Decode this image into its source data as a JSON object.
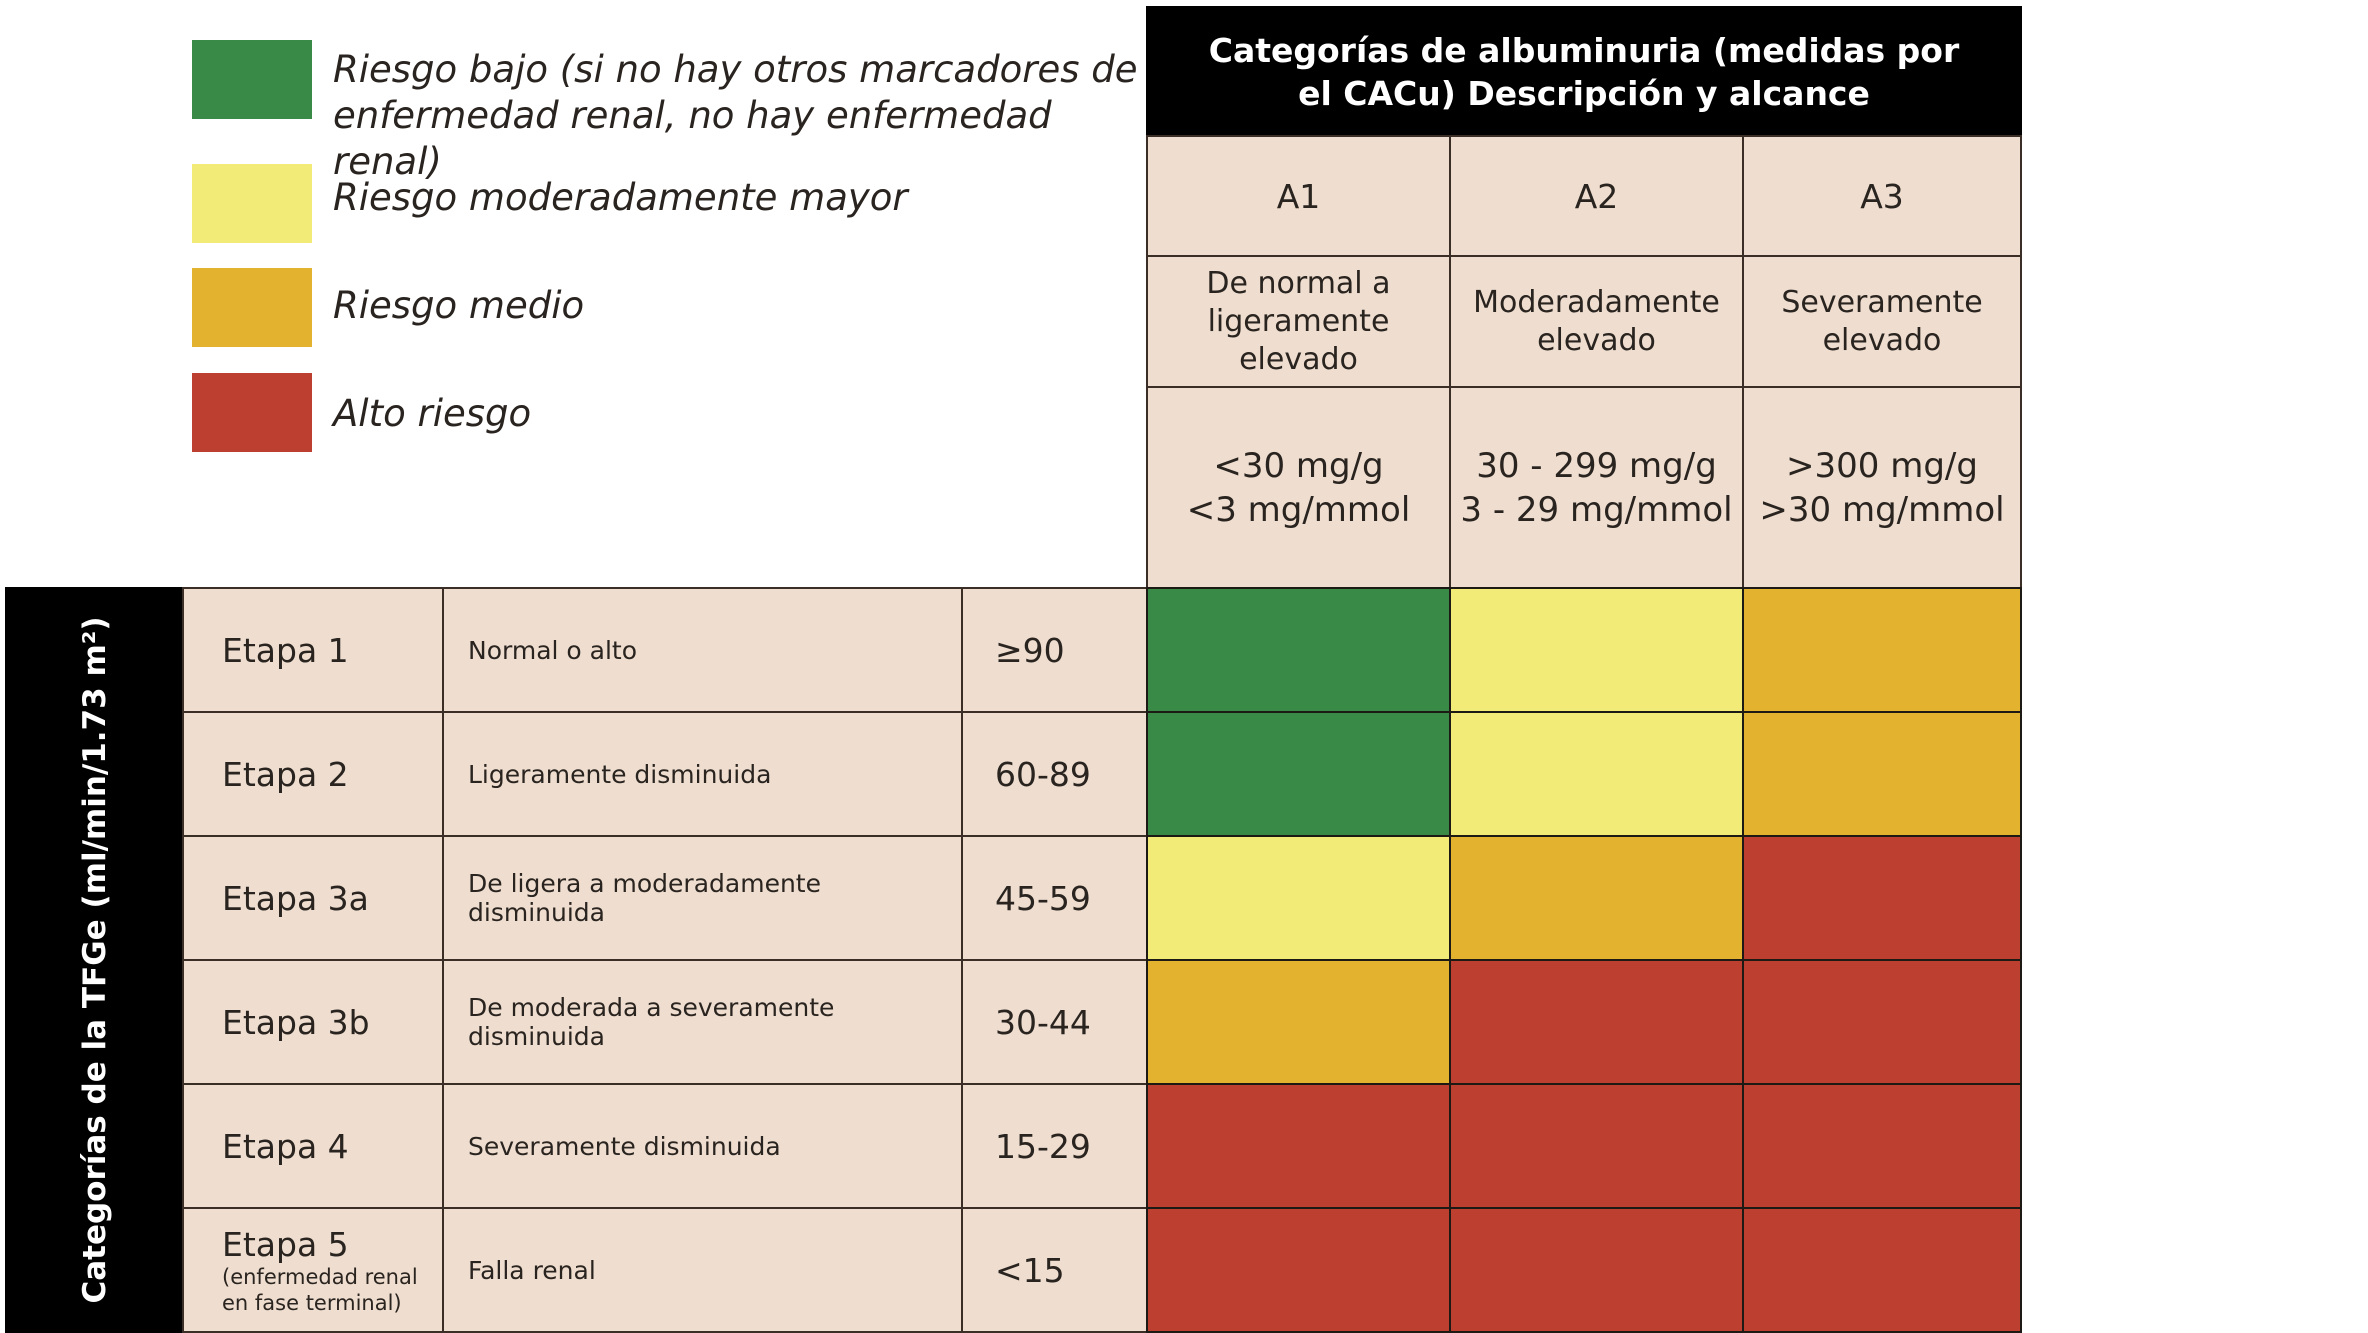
{
  "legend": [
    {
      "label_line1": "Riesgo bajo (si no hay otros marcadores de",
      "label_line2": "enfermedad renal, no hay enfermedad renal)",
      "color": "#3a8a47",
      "level": "low"
    },
    {
      "label_line1": "Riesgo moderadamente mayor",
      "label_line2": "",
      "color": "#f3eb78",
      "level": "moderate"
    },
    {
      "label_line1": "Riesgo medio",
      "label_line2": "",
      "color": "#e3b22e",
      "level": "medium"
    },
    {
      "label_line1": "Alto riesgo",
      "label_line2": "",
      "color": "#bd3f30",
      "level": "high"
    }
  ],
  "albuminuria": {
    "title_line1": "Categorías de albuminuria (medidas por",
    "title_line2": "el CACu) Descripción y alcance",
    "columns": [
      {
        "code": "A1",
        "desc_line1": "De normal a",
        "desc_line2": "ligeramente elevado",
        "range_line1": "<30 mg/g",
        "range_line2": "<3 mg/mmol"
      },
      {
        "code": "A2",
        "desc_line1": "Moderadamente",
        "desc_line2": "elevado",
        "range_line1": "30 - 299 mg/g",
        "range_line2": "3 - 29 mg/mmol"
      },
      {
        "code": "A3",
        "desc_line1": "Severamente",
        "desc_line2": "elevado",
        "range_line1": ">300 mg/g",
        "range_line2": ">30 mg/mmol"
      }
    ]
  },
  "gfr": {
    "axis_label": "Categorías de la TFGe (ml/min/1.73 m²)",
    "rows": [
      {
        "stage": "Etapa 1",
        "stage_sub1": "",
        "stage_sub2": "",
        "desc": "Normal o alto",
        "value": "≥90",
        "risk": [
          "#3a8a47",
          "#f3eb78",
          "#e3b22e"
        ]
      },
      {
        "stage": "Etapa 2",
        "stage_sub1": "",
        "stage_sub2": "",
        "desc": "Ligeramente disminuida",
        "value": "60-89",
        "risk": [
          "#3a8a47",
          "#f3eb78",
          "#e3b22e"
        ]
      },
      {
        "stage": "Etapa 3a",
        "stage_sub1": "",
        "stage_sub2": "",
        "desc": "De ligera a moderadamente disminuida",
        "value": "45-59",
        "risk": [
          "#f3eb78",
          "#e3b22e",
          "#bd3f30"
        ]
      },
      {
        "stage": "Etapa 3b",
        "stage_sub1": "",
        "stage_sub2": "",
        "desc": "De moderada a severamente disminuida",
        "value": "30-44",
        "risk": [
          "#e3b22e",
          "#bd3f30",
          "#bd3f30"
        ]
      },
      {
        "stage": "Etapa 4",
        "stage_sub1": "",
        "stage_sub2": "",
        "desc": "Severamente disminuida",
        "value": "15-29",
        "risk": [
          "#bd3f30",
          "#bd3f30",
          "#bd3f30"
        ]
      },
      {
        "stage": "Etapa 5",
        "stage_sub1": "(enfermedad renal",
        "stage_sub2": "en fase terminal)",
        "desc": "Falla renal",
        "value": "<15",
        "risk": [
          "#bd3f30",
          "#bd3f30",
          "#bd3f30"
        ]
      }
    ]
  }
}
